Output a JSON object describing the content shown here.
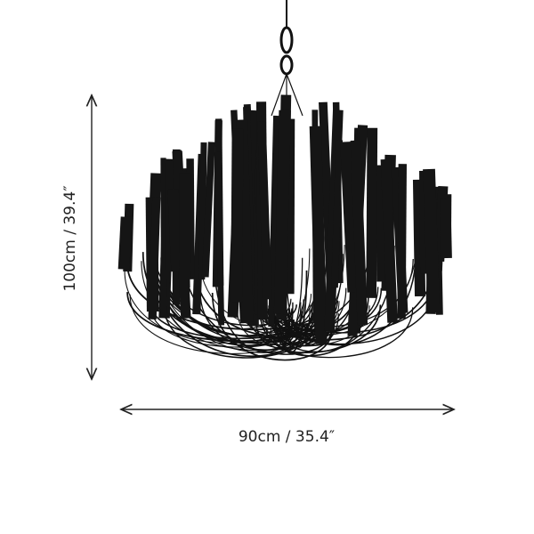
{
  "dimensions": {
    "height": "100cm / 39.4″",
    "width": "90cm / 35.4″"
  }
}
